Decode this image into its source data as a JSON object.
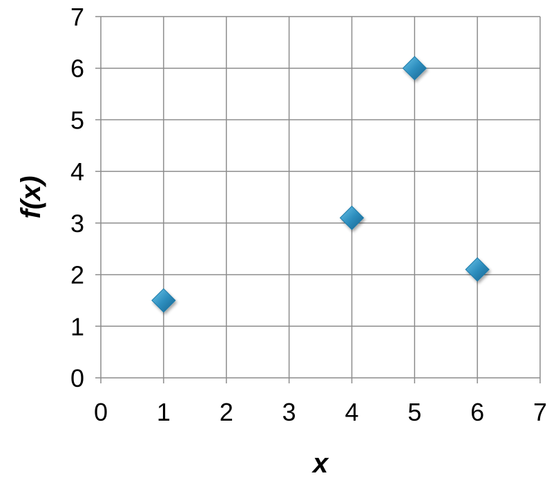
{
  "chart_data": {
    "type": "scatter",
    "title": "",
    "xlabel": "x",
    "ylabel": "f(x)",
    "xlim": [
      0,
      7
    ],
    "ylim": [
      0,
      7
    ],
    "x_ticks": [
      "0",
      "1",
      "2",
      "3",
      "4",
      "5",
      "6",
      "7"
    ],
    "y_ticks": [
      "0",
      "1",
      "2",
      "3",
      "4",
      "5",
      "6",
      "7"
    ],
    "grid": true,
    "legend": "none",
    "series": [
      {
        "marker": "diamond",
        "color": "#2e8fbf",
        "points": [
          {
            "x": 1,
            "y": 1.5
          },
          {
            "x": 4,
            "y": 3.1
          },
          {
            "x": 5,
            "y": 6.0
          },
          {
            "x": 6,
            "y": 2.1
          }
        ]
      }
    ]
  }
}
